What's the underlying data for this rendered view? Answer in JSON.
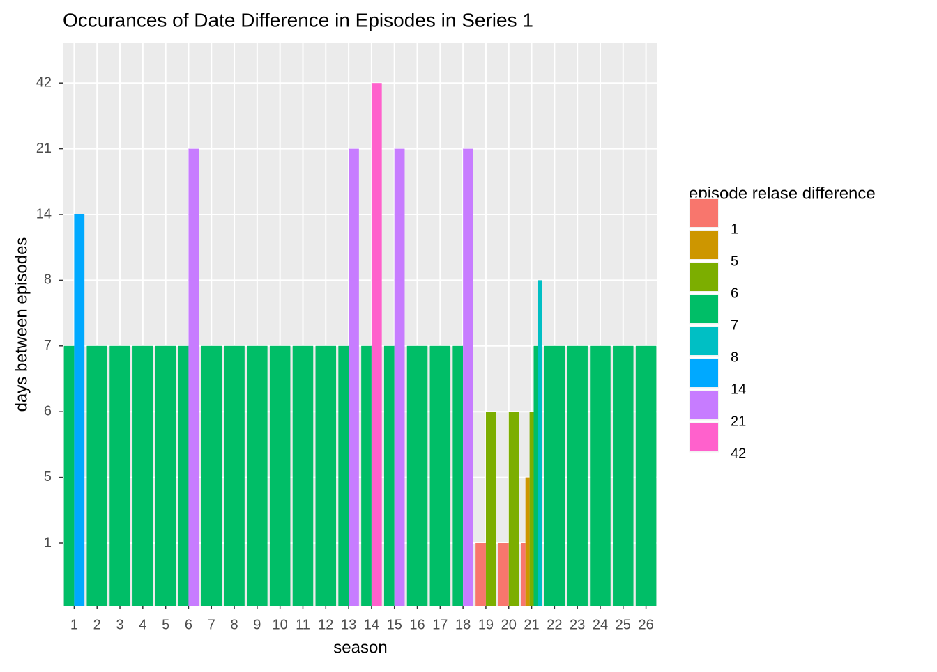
{
  "chart_data": {
    "type": "bar",
    "title": "Occurances of Date Difference in Episodes in Series 1",
    "x_label": "season",
    "y_label": "days between episodes",
    "legend_title": "episode relase difference",
    "legend": "right",
    "y_scale": "categorical",
    "grid": true,
    "position": "dodge",
    "categories": [
      "1",
      "2",
      "3",
      "4",
      "5",
      "6",
      "7",
      "8",
      "9",
      "10",
      "11",
      "12",
      "13",
      "14",
      "15",
      "16",
      "17",
      "18",
      "19",
      "20",
      "21",
      "22",
      "23",
      "24",
      "25",
      "26"
    ],
    "yticks": [
      1,
      5,
      6,
      7,
      8,
      14,
      21,
      42
    ],
    "series": [
      {
        "name": "1",
        "color": "#F8766D",
        "values": [
          null,
          null,
          null,
          null,
          null,
          null,
          null,
          null,
          null,
          null,
          null,
          null,
          null,
          null,
          null,
          null,
          null,
          null,
          1,
          1,
          1,
          null,
          null,
          null,
          null,
          null
        ]
      },
      {
        "name": "5",
        "color": "#CD9600",
        "values": [
          null,
          null,
          null,
          null,
          null,
          null,
          null,
          null,
          null,
          null,
          null,
          null,
          null,
          null,
          null,
          null,
          null,
          null,
          null,
          null,
          5,
          null,
          null,
          null,
          null,
          null
        ]
      },
      {
        "name": "6",
        "color": "#7CAE00",
        "values": [
          null,
          null,
          null,
          null,
          null,
          null,
          null,
          null,
          null,
          null,
          null,
          null,
          null,
          null,
          null,
          null,
          null,
          null,
          6,
          6,
          6,
          null,
          null,
          null,
          null,
          null
        ]
      },
      {
        "name": "7",
        "color": "#00BE67",
        "values": [
          7,
          7,
          7,
          7,
          7,
          7,
          7,
          7,
          7,
          7,
          7,
          7,
          7,
          7,
          7,
          7,
          7,
          7,
          null,
          null,
          7,
          7,
          7,
          7,
          7,
          7
        ]
      },
      {
        "name": "8",
        "color": "#00BFC4",
        "values": [
          null,
          null,
          null,
          null,
          null,
          null,
          null,
          null,
          null,
          null,
          null,
          null,
          null,
          null,
          null,
          null,
          null,
          null,
          null,
          null,
          8,
          null,
          null,
          null,
          null,
          null
        ]
      },
      {
        "name": "14",
        "color": "#00A9FF",
        "values": [
          14,
          null,
          null,
          null,
          null,
          null,
          null,
          null,
          null,
          null,
          null,
          null,
          null,
          null,
          null,
          null,
          null,
          null,
          null,
          null,
          null,
          null,
          null,
          null,
          null,
          null
        ]
      },
      {
        "name": "21",
        "color": "#C77CFF",
        "values": [
          null,
          null,
          null,
          null,
          null,
          21,
          null,
          null,
          null,
          null,
          null,
          null,
          21,
          null,
          21,
          null,
          null,
          21,
          null,
          null,
          null,
          null,
          null,
          null,
          null,
          null
        ]
      },
      {
        "name": "42",
        "color": "#FF61CC",
        "values": [
          null,
          null,
          null,
          null,
          null,
          null,
          null,
          null,
          null,
          null,
          null,
          null,
          null,
          42,
          null,
          null,
          null,
          null,
          null,
          null,
          null,
          null,
          null,
          null,
          null,
          null
        ]
      }
    ]
  }
}
